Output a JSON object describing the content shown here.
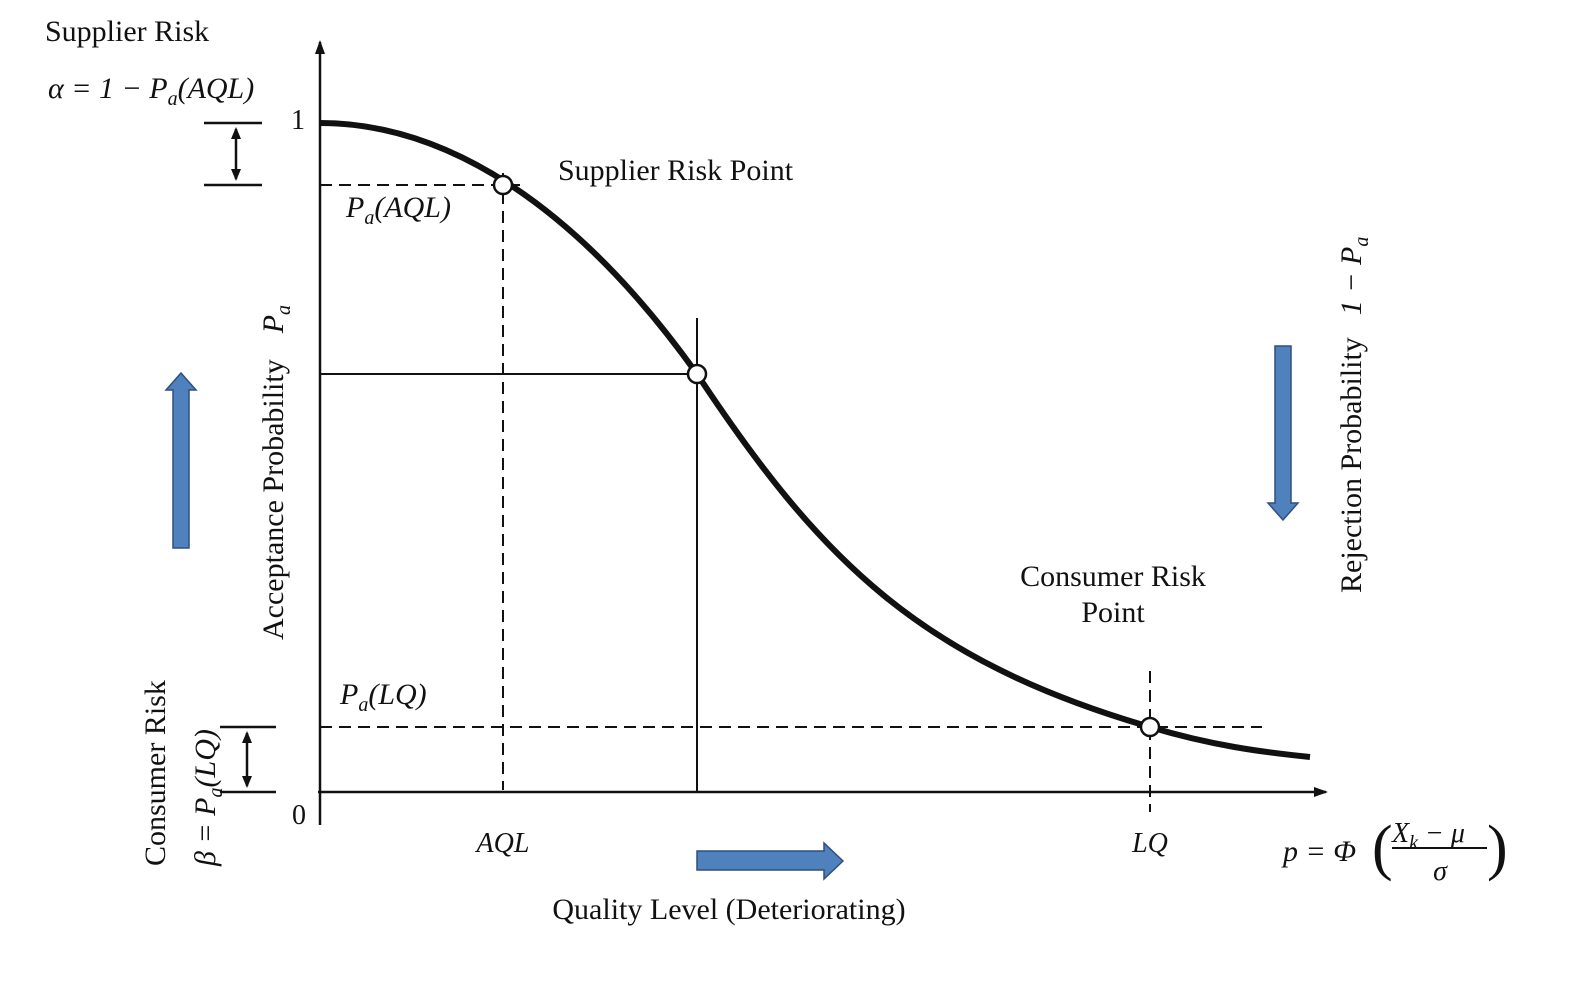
{
  "labels": {
    "supplier_risk_title": "Supplier Risk",
    "supplier_risk_formula": {
      "prefix": "α = 1 − ",
      "P": "P",
      "sub": "a",
      "arg": "(AQL)"
    },
    "y_tick_one": "1",
    "y_tick_zero": "0",
    "pa_aql": {
      "P": "P",
      "sub": "a",
      "arg": "(AQL)"
    },
    "supplier_risk_point": "Supplier Risk Point",
    "y_axis_label": "Acceptance Probability",
    "y_axis_symbol": {
      "P": "P",
      "sub": "a"
    },
    "rejection_label": "Rejection Probability",
    "rejection_symbol": {
      "prefix": "1 − ",
      "P": "P",
      "sub": "a"
    },
    "consumer_risk_point_line1": "Consumer Risk",
    "consumer_risk_point_line2": "Point",
    "pa_lq": {
      "P": "P",
      "sub": "a",
      "arg": "(LQ)"
    },
    "consumer_risk_title": "Consumer Risk",
    "consumer_risk_formula": {
      "prefix": "β = ",
      "P": "P",
      "sub": "a",
      "arg": "(LQ)"
    },
    "x_tick_aql": "AQL",
    "x_tick_lq": "LQ",
    "x_axis_formula": {
      "lhs": "p = Φ",
      "numerator": "X",
      "numerator_sub": "k",
      "numerator_rest": " − μ",
      "denominator": "σ"
    },
    "x_axis_label": "Quality Level (Deteriorating)"
  },
  "colors": {
    "arrow_fill": "#4f81bd",
    "arrow_stroke": "#2f4f7f",
    "line": "#111111"
  },
  "icons": {
    "up_arrow": "arrow-up-icon",
    "down_arrow": "arrow-down-icon",
    "right_arrow": "arrow-right-icon"
  }
}
